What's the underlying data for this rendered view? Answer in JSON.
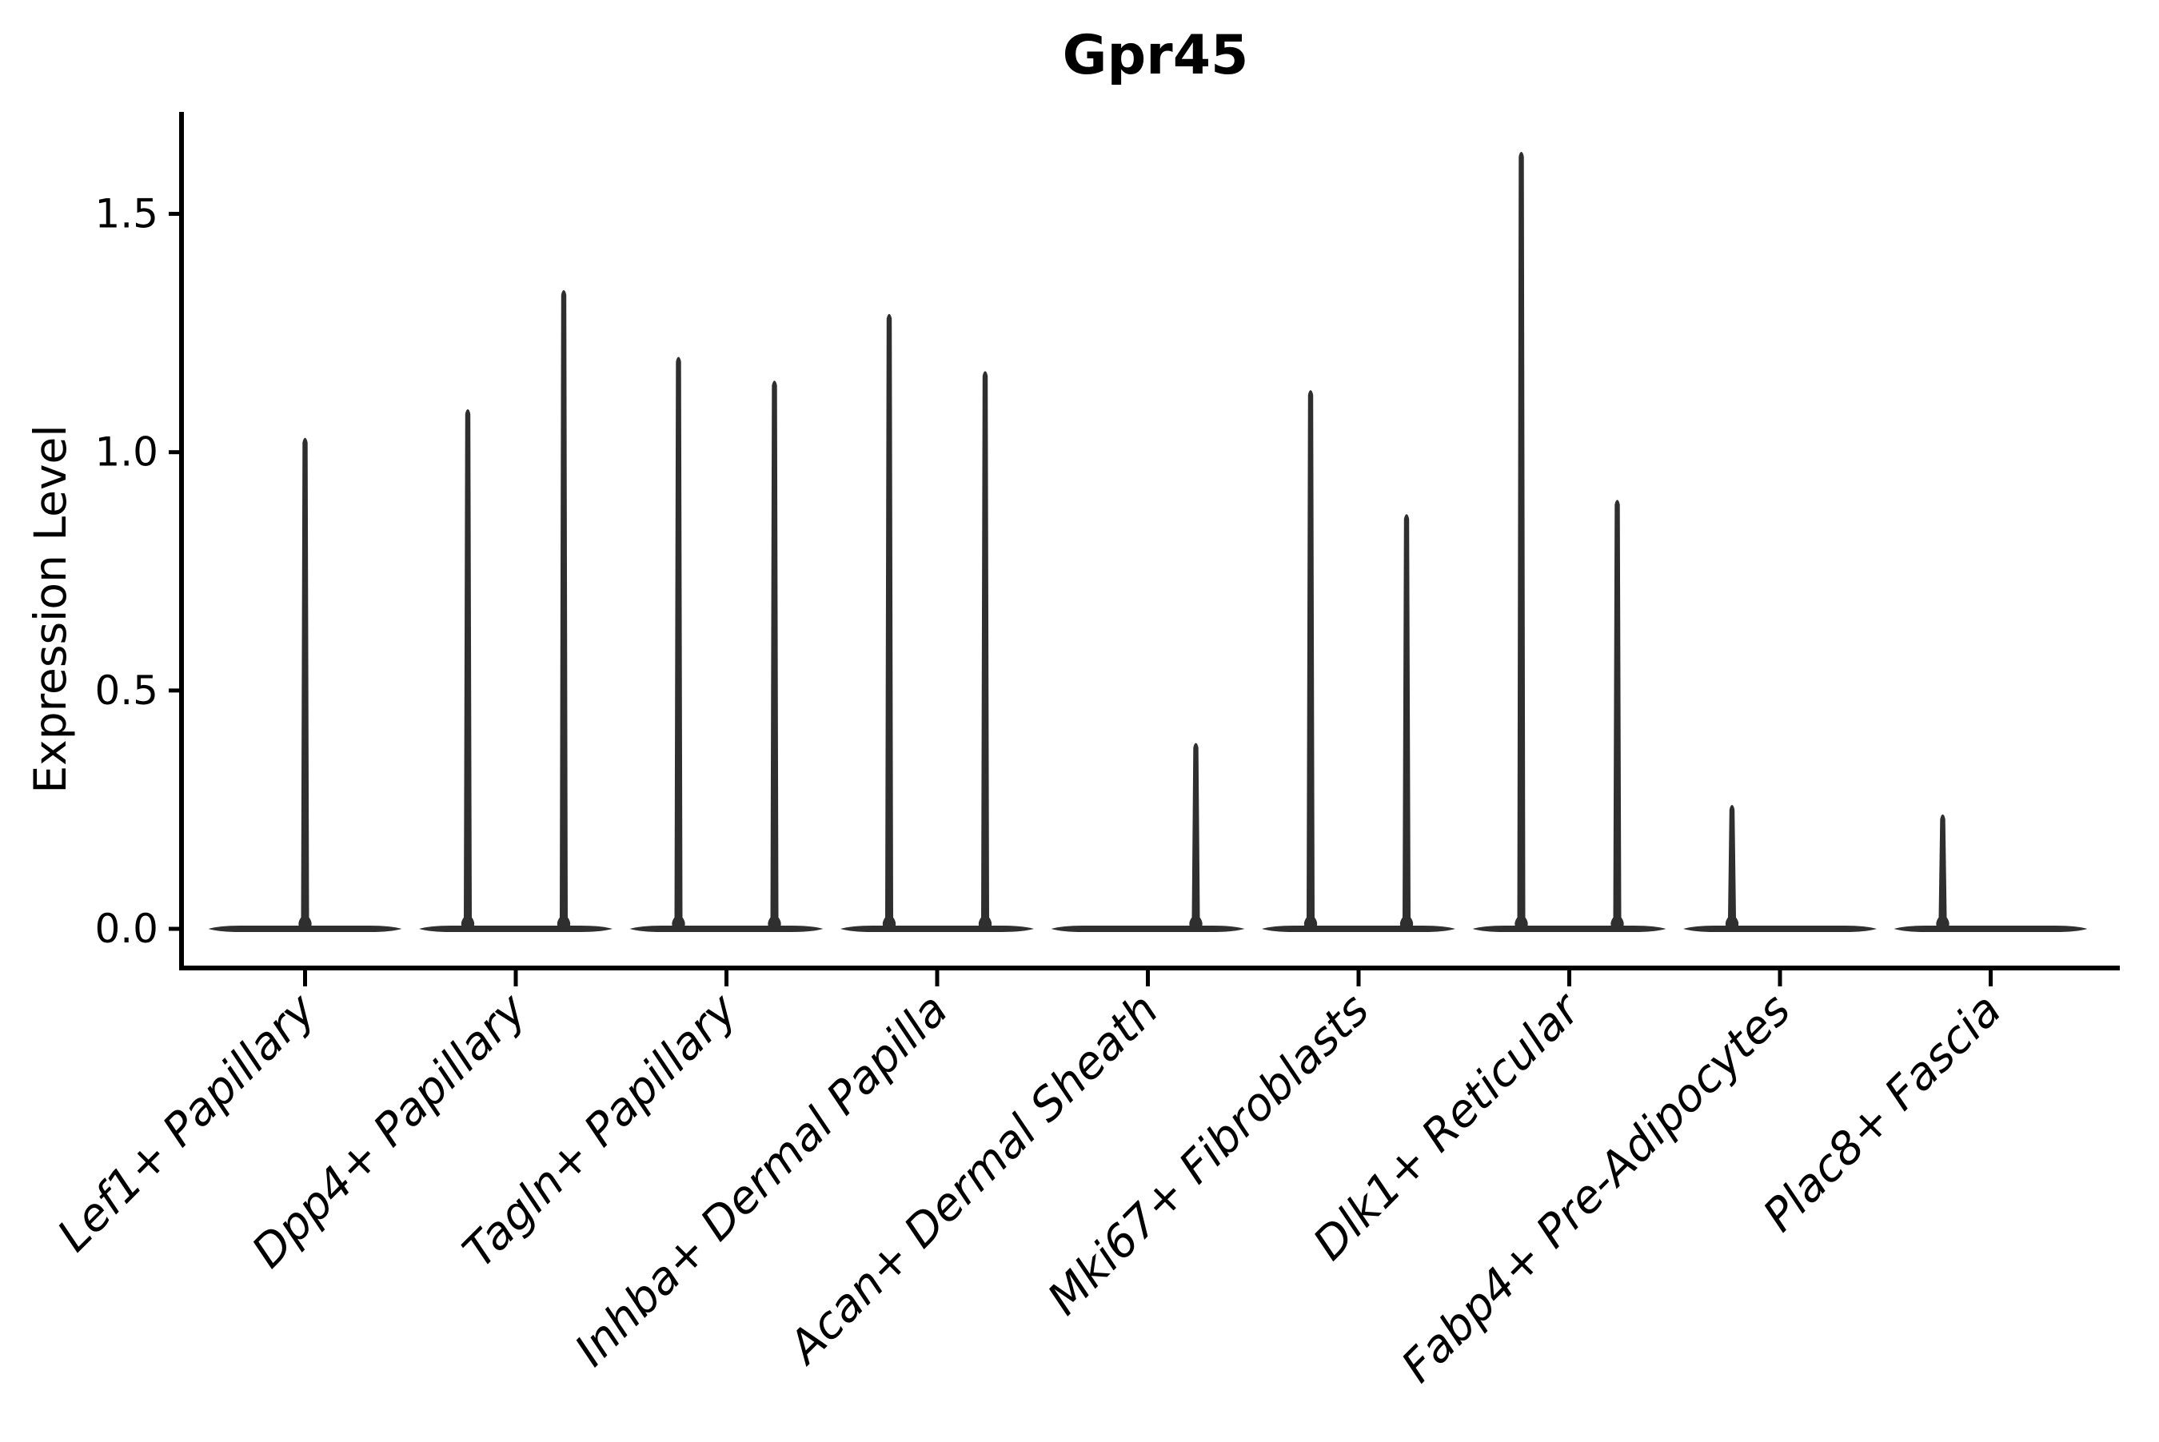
{
  "chart_data": {
    "type": "violin",
    "title": "Gpr45",
    "ylabel": "Expression Level",
    "xlabel": "",
    "yticks": [
      0.0,
      0.5,
      1.0,
      1.5
    ],
    "ytick_labels": [
      "0.0",
      "0.5",
      "1.0",
      "1.5"
    ],
    "ylim": [
      -0.08,
      1.71
    ],
    "grid": false,
    "legend": "none",
    "line_color": "#2f2f2f",
    "axis_color": "#000000",
    "categories": [
      "Lef1+ Papillary",
      "Dpp4+ Papillary",
      "Tagln+ Papillary",
      "Inhba+ Dermal Papilla",
      "Acan+ Dermal Sheath",
      "Mki67+ Fibroblasts",
      "Dlk1+ Reticular",
      "Fabp4+ Pre-Adipocytes",
      "Plac8+ Fascia"
    ],
    "violins": [
      {
        "category": "Lef1+ Papillary",
        "baseline_at": 0.0,
        "spikes": [
          {
            "pos": "center",
            "max": 1.03
          }
        ]
      },
      {
        "category": "Dpp4+ Papillary",
        "baseline_at": 0.0,
        "spikes": [
          {
            "pos": "left",
            "max": 1.09
          },
          {
            "pos": "right",
            "max": 1.34
          }
        ]
      },
      {
        "category": "Tagln+ Papillary",
        "baseline_at": 0.0,
        "spikes": [
          {
            "pos": "left",
            "max": 1.2
          },
          {
            "pos": "right",
            "max": 1.15
          }
        ]
      },
      {
        "category": "Inhba+ Dermal Papilla",
        "baseline_at": 0.0,
        "spikes": [
          {
            "pos": "left",
            "max": 1.29
          },
          {
            "pos": "right",
            "max": 1.17
          }
        ]
      },
      {
        "category": "Acan+ Dermal Sheath",
        "baseline_at": 0.0,
        "spikes": [
          {
            "pos": "right",
            "max": 0.39
          }
        ]
      },
      {
        "category": "Mki67+ Fibroblasts",
        "baseline_at": 0.0,
        "spikes": [
          {
            "pos": "left",
            "max": 1.13
          },
          {
            "pos": "right",
            "max": 0.87
          }
        ]
      },
      {
        "category": "Dlk1+ Reticular",
        "baseline_at": 0.0,
        "spikes": [
          {
            "pos": "left",
            "max": 1.63
          },
          {
            "pos": "right",
            "max": 0.9
          }
        ]
      },
      {
        "category": "Fabp4+ Pre-Adipocytes",
        "baseline_at": 0.0,
        "spikes": [
          {
            "pos": "left",
            "max": 0.26
          }
        ]
      },
      {
        "category": "Plac8+ Fascia",
        "baseline_at": 0.0,
        "spikes": [
          {
            "pos": "left",
            "max": 0.24
          }
        ]
      }
    ]
  }
}
